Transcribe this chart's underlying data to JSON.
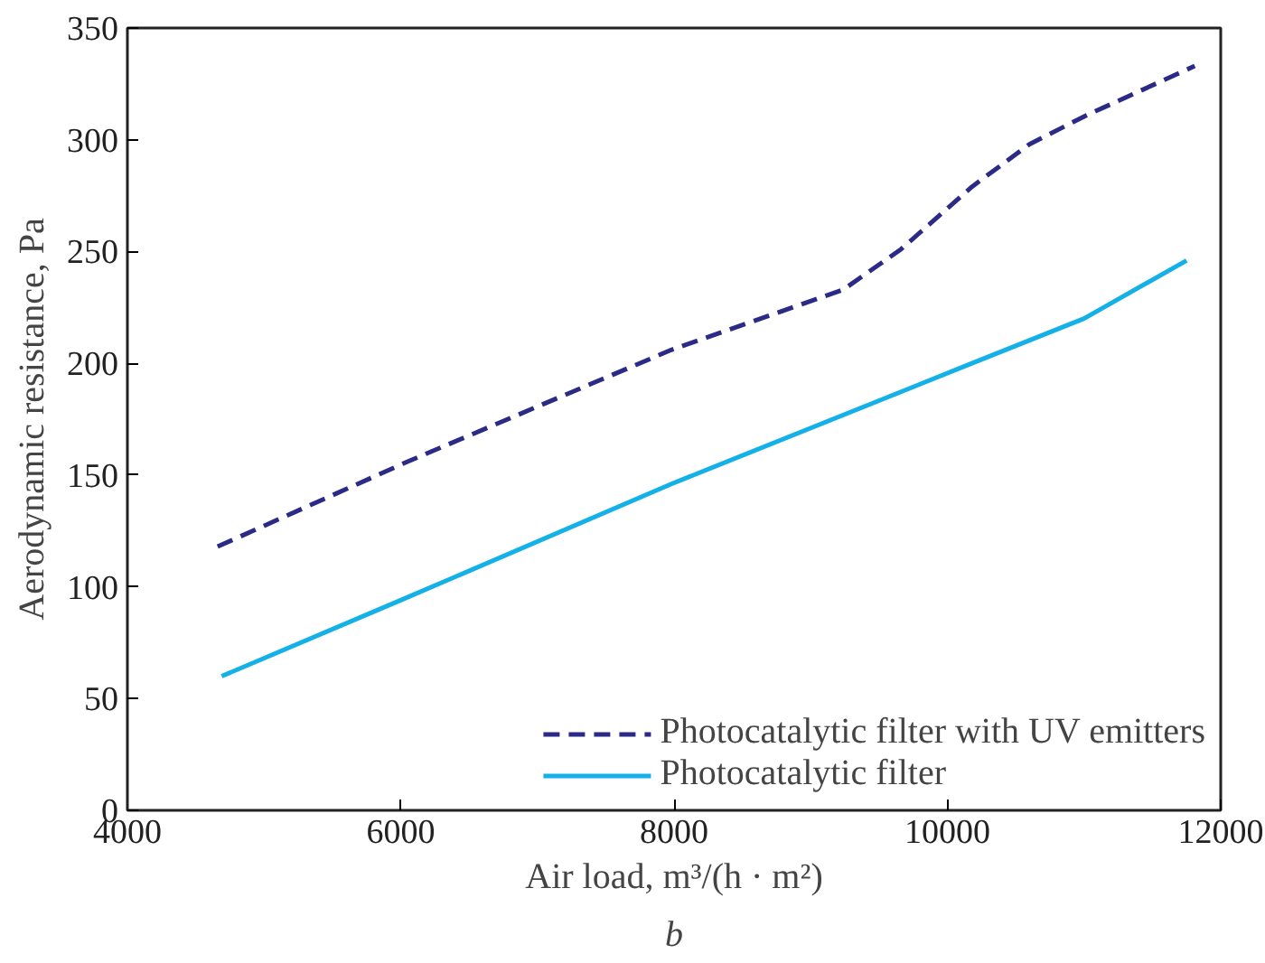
{
  "chart_data": {
    "type": "line",
    "xlabel": "Air load, m³/(h · m²)",
    "ylabel": "Aerodynamic resistance, Pa",
    "annotations": [
      "b"
    ],
    "xlim": [
      4000,
      12000
    ],
    "xticks": [
      4000,
      6000,
      8000,
      10000,
      12000
    ],
    "ylim": [
      0,
      350
    ],
    "yticks": [
      0,
      50,
      100,
      150,
      200,
      250,
      300,
      350
    ],
    "grid": false,
    "legend": "bottom right",
    "series": [
      {
        "name": "Photocatalytic filter with UV emitters",
        "color": "#2b2a86",
        "line_style": "dashed",
        "x": [
          4660,
          6050,
          7980,
          9240,
          9660,
          10180,
          10600,
          11020,
          11810
        ],
        "values": [
          118,
          156,
          206,
          233,
          251,
          279,
          298,
          311,
          333
        ]
      },
      {
        "name": "Photocatalytic filter",
        "color": "#14b0e8",
        "line_style": "solid",
        "x": [
          4690,
          6000,
          7980,
          10180,
          11000,
          11750
        ],
        "values": [
          60,
          94,
          146,
          200,
          220,
          246
        ]
      }
    ]
  }
}
